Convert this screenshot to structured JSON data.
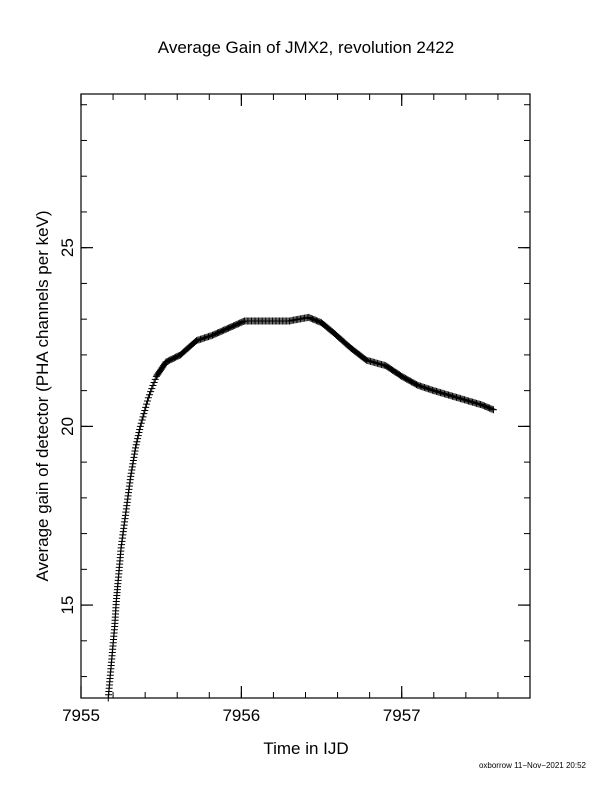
{
  "chart_data": {
    "type": "scatter",
    "title": "Average Gain of JMX2, revolution 2422",
    "xlabel": "Time in IJD",
    "ylabel": "Average gain of detector (PHA channels per keV)",
    "xlim": [
      7955.0,
      7957.8
    ],
    "ylim": [
      12.4,
      29.3
    ],
    "x_ticks": [
      7955,
      7956,
      7957
    ],
    "y_ticks": [
      15,
      20,
      25
    ],
    "marker": "+",
    "grid": false,
    "legend": "none",
    "curve_points": [
      {
        "x": 7955.17,
        "y": 12.4
      },
      {
        "x": 7955.19,
        "y": 13.4
      },
      {
        "x": 7955.21,
        "y": 14.4
      },
      {
        "x": 7955.22,
        "y": 15.1
      },
      {
        "x": 7955.23,
        "y": 15.6
      },
      {
        "x": 7955.25,
        "y": 16.6
      },
      {
        "x": 7955.28,
        "y": 17.6
      },
      {
        "x": 7955.31,
        "y": 18.6
      },
      {
        "x": 7955.34,
        "y": 19.4
      },
      {
        "x": 7955.37,
        "y": 20.0
      },
      {
        "x": 7955.42,
        "y": 20.8
      },
      {
        "x": 7955.47,
        "y": 21.4
      },
      {
        "x": 7955.53,
        "y": 21.8
      },
      {
        "x": 7955.62,
        "y": 22.0
      },
      {
        "x": 7955.72,
        "y": 22.4
      },
      {
        "x": 7955.82,
        "y": 22.55
      },
      {
        "x": 7955.92,
        "y": 22.75
      },
      {
        "x": 7956.02,
        "y": 22.95
      },
      {
        "x": 7956.15,
        "y": 22.95
      },
      {
        "x": 7956.3,
        "y": 22.95
      },
      {
        "x": 7956.42,
        "y": 23.05
      },
      {
        "x": 7956.5,
        "y": 22.9
      },
      {
        "x": 7956.58,
        "y": 22.6
      },
      {
        "x": 7956.68,
        "y": 22.2
      },
      {
        "x": 7956.78,
        "y": 21.85
      },
      {
        "x": 7956.9,
        "y": 21.7
      },
      {
        "x": 7957.0,
        "y": 21.4
      },
      {
        "x": 7957.1,
        "y": 21.15
      },
      {
        "x": 7957.2,
        "y": 21.0
      },
      {
        "x": 7957.35,
        "y": 20.8
      },
      {
        "x": 7957.5,
        "y": 20.6
      },
      {
        "x": 7957.58,
        "y": 20.45
      }
    ]
  },
  "footer": {
    "stamp": "oxborrow 11−Nov−2021 20:52"
  }
}
